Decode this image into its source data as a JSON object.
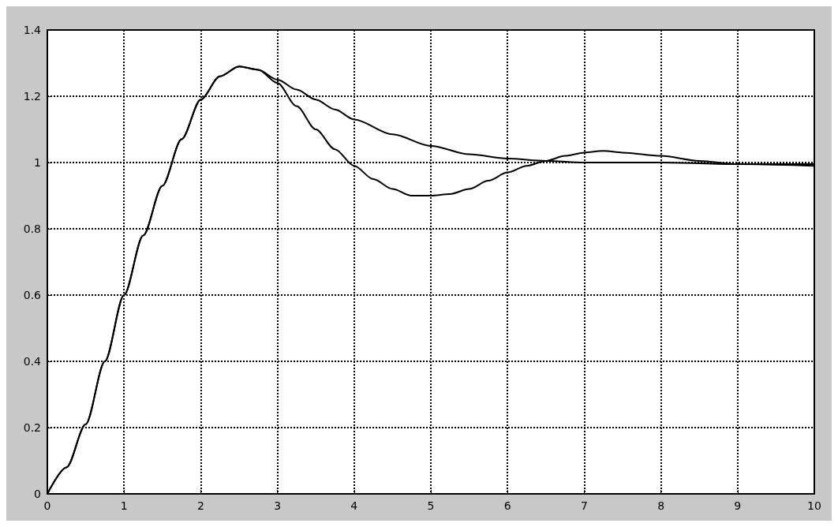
{
  "chart_data": {
    "type": "line",
    "xlim": [
      0,
      10
    ],
    "ylim": [
      0,
      1.4
    ],
    "xticks": [
      0,
      1,
      2,
      3,
      4,
      5,
      6,
      7,
      8,
      9,
      10
    ],
    "yticks": [
      0,
      0.2,
      0.4,
      0.6,
      0.8,
      1,
      1.2,
      1.4
    ],
    "grid": true,
    "marker": "none",
    "line_style": "solid",
    "series": [
      {
        "color": "#000000",
        "x": [
          0,
          0.25,
          0.5,
          0.75,
          1,
          1.25,
          1.5,
          1.75,
          2,
          2.25,
          2.5,
          2.75,
          3,
          3.25,
          3.5,
          3.75,
          4,
          4.25,
          4.5,
          4.75,
          5,
          5.25,
          5.5,
          5.75,
          6,
          6.25,
          6.5,
          6.75,
          7,
          7.25,
          7.5,
          8,
          8.5,
          9,
          9.5,
          10
        ],
        "values": [
          0,
          0.08,
          0.21,
          0.4,
          0.6,
          0.78,
          0.93,
          1.07,
          1.19,
          1.26,
          1.29,
          1.28,
          1.24,
          1.17,
          1.1,
          1.04,
          0.99,
          0.95,
          0.92,
          0.9,
          0.9,
          0.905,
          0.92,
          0.945,
          0.97,
          0.99,
          1.005,
          1.02,
          1.03,
          1.035,
          1.03,
          1.02,
          1.005,
          0.995,
          0.995,
          0.995
        ]
      },
      {
        "color": "#000000",
        "x": [
          0,
          0.25,
          0.5,
          0.75,
          1,
          1.25,
          1.5,
          1.75,
          2,
          2.25,
          2.5,
          2.75,
          3,
          3.25,
          3.5,
          3.75,
          4,
          4.5,
          5,
          5.5,
          6,
          6.5,
          7,
          8,
          9,
          10
        ],
        "values": [
          0,
          0.08,
          0.21,
          0.4,
          0.6,
          0.78,
          0.93,
          1.07,
          1.19,
          1.26,
          1.29,
          1.28,
          1.25,
          1.22,
          1.19,
          1.16,
          1.13,
          1.085,
          1.05,
          1.025,
          1.012,
          1.005,
          1,
          1,
          0.995,
          0.99
        ]
      }
    ]
  }
}
